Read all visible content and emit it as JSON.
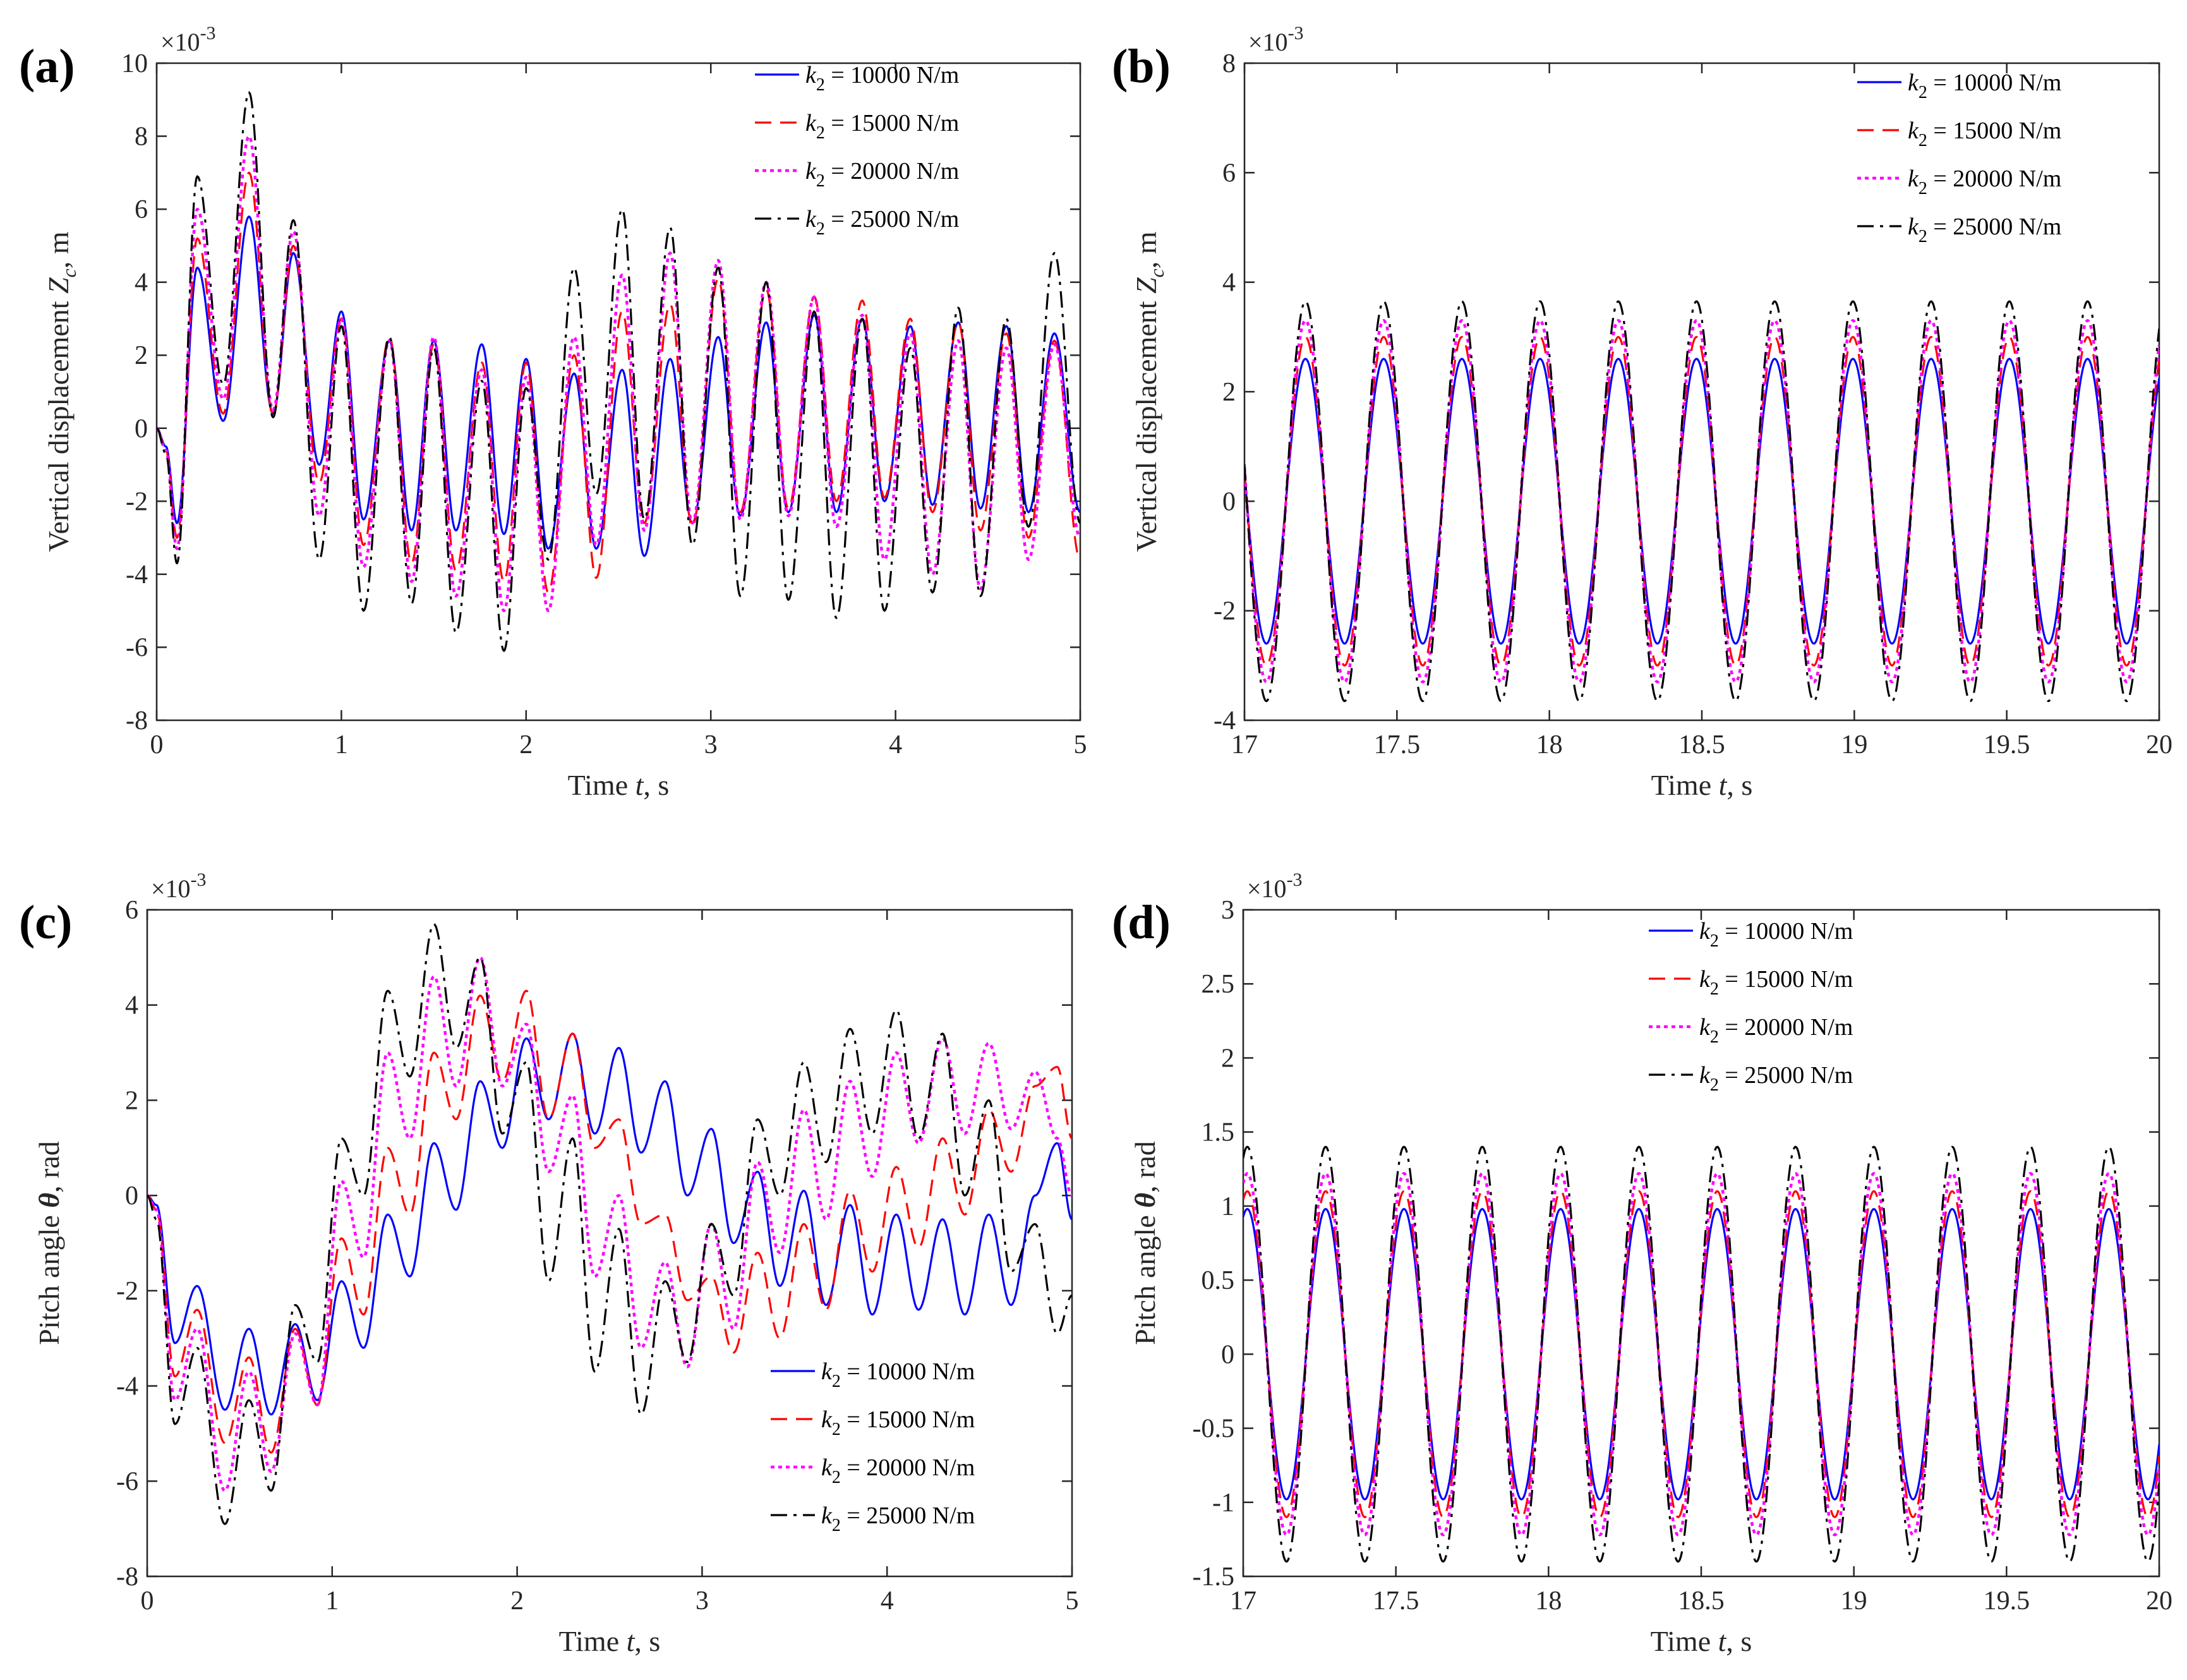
{
  "figure": {
    "series_styles": [
      {
        "name": "k2 = 10000 N/m",
        "color": "#0000ff",
        "dash": "solid"
      },
      {
        "name": "k2 = 15000 N/m",
        "color": "#ff0000",
        "dash": "dashed"
      },
      {
        "name": "k2 = 20000 N/m",
        "color": "#ff00ff",
        "dash": "dotted"
      },
      {
        "name": "k2 = 25000 N/m",
        "color": "#000000",
        "dash": "dashdot"
      }
    ]
  },
  "chart_data": [
    {
      "panel": "(a)",
      "type": "line",
      "title": "",
      "xlabel": "Time t, s",
      "ylabel": "Vertical displacement Zc, m",
      "exponent": "×10-3",
      "xlim": [
        0,
        5
      ],
      "ylim": [
        -8,
        10
      ],
      "xticks": [
        "0",
        "1",
        "2",
        "3",
        "4",
        "5"
      ],
      "yticks": [
        "-8",
        "-6",
        "-4",
        "-2",
        "0",
        "2",
        "4",
        "6",
        "8",
        "10"
      ],
      "legend": {
        "placement": "top-right",
        "entries": [
          {
            "sym": "k",
            "sub": "2",
            "rest": " = 10000 N/m"
          },
          {
            "sym": "k",
            "sub": "2",
            "rest": " = 15000 N/m"
          },
          {
            "sym": "k",
            "sub": "2",
            "rest": " = 20000 N/m"
          },
          {
            "sym": "k",
            "sub": "2",
            "rest": " = 25000 N/m"
          }
        ]
      },
      "series": [
        {
          "name": "k2 = 10000 N/m",
          "x": [
            0,
            0.05,
            0.11,
            0.22,
            0.36,
            0.5,
            0.63,
            0.74,
            0.88,
            1.0,
            1.12,
            1.26,
            1.38,
            1.5,
            1.62,
            1.76,
            1.88,
            2.0,
            2.12,
            2.26,
            2.38,
            2.52,
            2.64,
            2.78,
            2.9,
            3.04,
            3.16,
            3.3,
            3.42,
            3.56,
            3.68,
            3.82,
            3.94,
            4.08,
            4.2,
            4.34,
            4.46,
            4.6,
            4.72,
            4.86,
            5.0
          ],
          "y": [
            0,
            -0.5,
            -2.6,
            4.4,
            0.2,
            5.8,
            0.4,
            4.8,
            -1.0,
            3.2,
            -2.5,
            2.4,
            -2.8,
            2.4,
            -2.8,
            2.3,
            -2.9,
            1.9,
            -3.3,
            1.5,
            -3.3,
            1.6,
            -3.5,
            1.9,
            -2.6,
            2.5,
            -2.4,
            2.9,
            -2.3,
            3.1,
            -2.3,
            3.0,
            -2.0,
            2.8,
            -2.1,
            2.9,
            -2.2,
            2.8,
            -2.3,
            2.6,
            -2.3
          ]
        },
        {
          "name": "k2 = 15000 N/m",
          "x": [
            0,
            0.05,
            0.11,
            0.22,
            0.36,
            0.5,
            0.63,
            0.74,
            0.88,
            1.0,
            1.12,
            1.26,
            1.38,
            1.5,
            1.62,
            1.76,
            1.88,
            2.0,
            2.12,
            2.26,
            2.38,
            2.52,
            2.64,
            2.78,
            2.9,
            3.04,
            3.16,
            3.3,
            3.42,
            3.56,
            3.68,
            3.82,
            3.94,
            4.08,
            4.2,
            4.34,
            4.46,
            4.6,
            4.72,
            4.86,
            5.0
          ],
          "y": [
            0,
            -0.6,
            -3.0,
            5.2,
            0.4,
            7.0,
            0.4,
            5.0,
            -1.5,
            3.0,
            -3.2,
            2.5,
            -3.7,
            2.3,
            -3.9,
            1.8,
            -4.2,
            1.8,
            -4.5,
            2.0,
            -4.1,
            3.2,
            -2.6,
            3.4,
            -2.7,
            4.1,
            -2.3,
            3.8,
            -2.2,
            3.6,
            -2.0,
            3.5,
            -1.9,
            3.0,
            -2.3,
            2.9,
            -2.8,
            2.6,
            -3.0,
            2.4,
            -3.6
          ]
        },
        {
          "name": "k2 = 20000 N/m",
          "x": [
            0,
            0.05,
            0.11,
            0.22,
            0.36,
            0.5,
            0.63,
            0.74,
            0.88,
            1.0,
            1.12,
            1.26,
            1.38,
            1.5,
            1.62,
            1.76,
            1.88,
            2.0,
            2.12,
            2.26,
            2.38,
            2.52,
            2.64,
            2.78,
            2.9,
            3.04,
            3.16,
            3.3,
            3.42,
            3.56,
            3.68,
            3.82,
            3.94,
            4.08,
            4.2,
            4.34,
            4.46,
            4.6,
            4.72,
            4.86,
            5.0
          ],
          "y": [
            0,
            -0.6,
            -3.3,
            6.0,
            0.8,
            8.0,
            0.5,
            5.4,
            -2.4,
            3.0,
            -3.8,
            2.4,
            -4.2,
            2.5,
            -4.6,
            1.6,
            -5.0,
            1.4,
            -5.0,
            2.5,
            -3.2,
            4.2,
            -2.8,
            4.8,
            -2.6,
            4.6,
            -2.5,
            4.0,
            -2.4,
            3.6,
            -2.7,
            3.1,
            -3.6,
            2.6,
            -4.0,
            2.4,
            -4.4,
            2.2,
            -3.6,
            2.3,
            -3.0
          ]
        },
        {
          "name": "k2 = 25000 N/m",
          "x": [
            0,
            0.05,
            0.11,
            0.22,
            0.36,
            0.5,
            0.63,
            0.74,
            0.88,
            1.0,
            1.12,
            1.26,
            1.38,
            1.5,
            1.62,
            1.76,
            1.88,
            2.0,
            2.12,
            2.26,
            2.38,
            2.52,
            2.64,
            2.78,
            2.9,
            3.04,
            3.16,
            3.3,
            3.42,
            3.56,
            3.68,
            3.82,
            3.94,
            4.08,
            4.2,
            4.34,
            4.46,
            4.6,
            4.72,
            4.86,
            5.0
          ],
          "y": [
            0,
            -0.7,
            -3.7,
            6.9,
            1.2,
            9.2,
            0.3,
            5.7,
            -3.6,
            2.8,
            -5.0,
            2.5,
            -4.8,
            2.2,
            -5.6,
            1.3,
            -6.1,
            1.1,
            -3.6,
            4.4,
            -1.8,
            6.0,
            -2.5,
            5.5,
            -3.2,
            4.4,
            -4.6,
            4.0,
            -4.7,
            3.2,
            -5.2,
            3.0,
            -5.0,
            2.2,
            -4.5,
            3.3,
            -4.6,
            3.0,
            -2.7,
            4.8,
            -2.6
          ]
        }
      ]
    },
    {
      "panel": "(b)",
      "type": "line",
      "title": "",
      "xlabel": "Time t, s",
      "ylabel": "Vertical displacement Zc, m",
      "exponent": "×10-3",
      "xlim": [
        17,
        20
      ],
      "ylim": [
        -4,
        8
      ],
      "xticks": [
        "17",
        "17.5",
        "18",
        "18.5",
        "19",
        "19.5",
        "20"
      ],
      "yticks": [
        "-4",
        "-2",
        "0",
        "2",
        "4",
        "6",
        "8"
      ],
      "legend": {
        "placement": "top-right",
        "entries": [
          {
            "sym": "k",
            "sub": "2",
            "rest": " = 10000 N/m"
          },
          {
            "sym": "k",
            "sub": "2",
            "rest": " = 15000 N/m"
          },
          {
            "sym": "k",
            "sub": "2",
            "rest": " = 20000 N/m"
          },
          {
            "sym": "k",
            "sub": "2",
            "rest": " = 25000 N/m"
          }
        ]
      },
      "periodic": {
        "period": 0.2565,
        "peak_time": 17.2,
        "base": 0
      },
      "series": [
        {
          "name": "k2 = 10000 N/m",
          "amplitude": 2.6
        },
        {
          "name": "k2 = 15000 N/m",
          "amplitude": 3.0
        },
        {
          "name": "k2 = 20000 N/m",
          "amplitude": 3.3
        },
        {
          "name": "k2 = 25000 N/m",
          "amplitude": 3.65
        }
      ]
    },
    {
      "panel": "(c)",
      "type": "line",
      "title": "",
      "xlabel": "Time t, s",
      "ylabel": "Pitch angle θ, rad",
      "exponent": "×10-3",
      "xlim": [
        0,
        5
      ],
      "ylim": [
        -8,
        6
      ],
      "xticks": [
        "0",
        "1",
        "2",
        "3",
        "4",
        "5"
      ],
      "yticks": [
        "-8",
        "-6",
        "-4",
        "-2",
        "0",
        "2",
        "4",
        "6"
      ],
      "legend": {
        "placement": "bottom-right",
        "entries": [
          {
            "sym": "k",
            "sub": "2",
            "rest": " = 10000 N/m"
          },
          {
            "sym": "k",
            "sub": "2",
            "rest": " = 15000 N/m"
          },
          {
            "sym": "k",
            "sub": "2",
            "rest": " = 20000 N/m"
          },
          {
            "sym": "k",
            "sub": "2",
            "rest": " = 25000 N/m"
          }
        ]
      },
      "series": [
        {
          "name": "k2 = 10000 N/m",
          "x": [
            0,
            0.05,
            0.15,
            0.27,
            0.42,
            0.55,
            0.67,
            0.8,
            0.92,
            1.05,
            1.17,
            1.3,
            1.42,
            1.55,
            1.67,
            1.8,
            1.92,
            2.05,
            2.17,
            2.3,
            2.42,
            2.55,
            2.67,
            2.8,
            2.92,
            3.05,
            3.17,
            3.3,
            3.42,
            3.55,
            3.67,
            3.8,
            3.92,
            4.05,
            4.17,
            4.3,
            4.42,
            4.55,
            4.67,
            4.8,
            4.92,
            5.0
          ],
          "y": [
            0,
            -0.2,
            -3.1,
            -1.9,
            -4.5,
            -2.8,
            -4.6,
            -2.7,
            -4.3,
            -1.8,
            -3.2,
            -0.4,
            -1.7,
            1.1,
            -0.3,
            2.4,
            1.0,
            3.3,
            1.6,
            3.4,
            1.3,
            3.1,
            0.9,
            2.4,
            0.0,
            1.4,
            -1.0,
            0.5,
            -1.9,
            0.1,
            -2.3,
            -0.2,
            -2.5,
            -0.4,
            -2.4,
            -0.5,
            -2.5,
            -0.4,
            -2.3,
            0.0,
            1.1,
            -0.5
          ]
        },
        {
          "name": "k2 = 15000 N/m",
          "x": [
            0,
            0.05,
            0.15,
            0.27,
            0.42,
            0.55,
            0.67,
            0.8,
            0.92,
            1.05,
            1.17,
            1.3,
            1.42,
            1.55,
            1.67,
            1.8,
            1.92,
            2.05,
            2.17,
            2.3,
            2.42,
            2.55,
            2.67,
            2.8,
            2.92,
            3.05,
            3.17,
            3.3,
            3.42,
            3.55,
            3.67,
            3.8,
            3.92,
            4.05,
            4.17,
            4.3,
            4.42,
            4.55,
            4.67,
            4.8,
            4.92,
            5.0
          ],
          "y": [
            0,
            -0.3,
            -3.8,
            -2.4,
            -5.2,
            -3.4,
            -5.4,
            -2.8,
            -4.4,
            -0.9,
            -2.5,
            1.0,
            -0.4,
            3.0,
            1.6,
            4.2,
            2.4,
            4.3,
            1.6,
            3.4,
            1.0,
            1.6,
            -0.6,
            -0.4,
            -2.2,
            -1.7,
            -3.3,
            -1.2,
            -3.0,
            -0.6,
            -2.4,
            0.1,
            -1.6,
            0.6,
            -1.1,
            1.2,
            -0.4,
            1.8,
            0.5,
            2.3,
            2.7,
            1.2
          ]
        },
        {
          "name": "k2 = 20000 N/m",
          "x": [
            0,
            0.05,
            0.15,
            0.27,
            0.42,
            0.55,
            0.67,
            0.8,
            0.92,
            1.05,
            1.17,
            1.3,
            1.42,
            1.55,
            1.67,
            1.8,
            1.92,
            2.05,
            2.17,
            2.3,
            2.42,
            2.55,
            2.67,
            2.8,
            2.92,
            3.05,
            3.17,
            3.3,
            3.42,
            3.55,
            3.67,
            3.8,
            3.92,
            4.05,
            4.17,
            4.3,
            4.42,
            4.55,
            4.67,
            4.8,
            4.92,
            5.0
          ],
          "y": [
            0,
            -0.3,
            -4.3,
            -2.8,
            -6.2,
            -3.7,
            -5.8,
            -2.9,
            -4.4,
            0.3,
            -1.3,
            3.0,
            1.2,
            4.6,
            2.3,
            5.0,
            2.3,
            3.6,
            0.5,
            2.1,
            -1.7,
            0.0,
            -3.2,
            -1.4,
            -3.6,
            -0.6,
            -2.8,
            0.7,
            -1.2,
            1.8,
            -0.5,
            2.4,
            0.4,
            3.0,
            1.1,
            3.3,
            1.3,
            3.2,
            1.4,
            2.6,
            1.2,
            0.0
          ]
        },
        {
          "name": "k2 = 25000 N/m",
          "x": [
            0,
            0.05,
            0.15,
            0.27,
            0.42,
            0.55,
            0.67,
            0.8,
            0.92,
            1.05,
            1.17,
            1.3,
            1.42,
            1.55,
            1.67,
            1.8,
            1.92,
            2.05,
            2.17,
            2.3,
            2.42,
            2.55,
            2.67,
            2.8,
            2.92,
            3.05,
            3.17,
            3.3,
            3.42,
            3.55,
            3.67,
            3.8,
            3.92,
            4.05,
            4.17,
            4.3,
            4.42,
            4.55,
            4.67,
            4.8,
            4.92,
            5.0
          ],
          "y": [
            0,
            -0.5,
            -4.8,
            -3.2,
            -6.9,
            -4.3,
            -6.2,
            -2.3,
            -3.5,
            1.2,
            0.0,
            4.3,
            2.5,
            5.7,
            3.1,
            5.0,
            1.3,
            2.8,
            -1.8,
            1.2,
            -3.7,
            -0.7,
            -4.6,
            -1.8,
            -3.5,
            -0.6,
            -2.1,
            1.6,
            0.0,
            2.8,
            0.7,
            3.5,
            1.3,
            3.9,
            1.2,
            3.4,
            0.0,
            2.0,
            -1.6,
            -0.6,
            -2.9,
            -2.1
          ]
        }
      ]
    },
    {
      "panel": "(d)",
      "type": "line",
      "title": "",
      "xlabel": "Time t, s",
      "ylabel": "Pitch angle θ, rad",
      "exponent": "×10-3",
      "xlim": [
        17,
        20
      ],
      "ylim": [
        -1.5,
        3
      ],
      "xticks": [
        "17",
        "17.5",
        "18",
        "18.5",
        "19",
        "19.5",
        "20"
      ],
      "yticks": [
        "-1.5",
        "-1",
        "-0.5",
        "0",
        "0.5",
        "1",
        "1.5",
        "2",
        "2.5",
        "3"
      ],
      "legend": {
        "placement": "top-center",
        "entries": [
          {
            "sym": "k",
            "sub": "2",
            "rest": " = 10000 N/m"
          },
          {
            "sym": "k",
            "sub": "2",
            "rest": " = 15000 N/m"
          },
          {
            "sym": "k",
            "sub": "2",
            "rest": " = 20000 N/m"
          },
          {
            "sym": "k",
            "sub": "2",
            "rest": " = 25000 N/m"
          }
        ]
      },
      "periodic": {
        "period": 0.2565,
        "peak_time": 17.27,
        "base": 0
      },
      "series": [
        {
          "name": "k2 = 10000 N/m",
          "amplitude": 0.98
        },
        {
          "name": "k2 = 15000 N/m",
          "amplitude": 1.1
        },
        {
          "name": "k2 = 20000 N/m",
          "amplitude": 1.22
        },
        {
          "name": "k2 = 25000 N/m",
          "amplitude": 1.4
        }
      ]
    }
  ]
}
